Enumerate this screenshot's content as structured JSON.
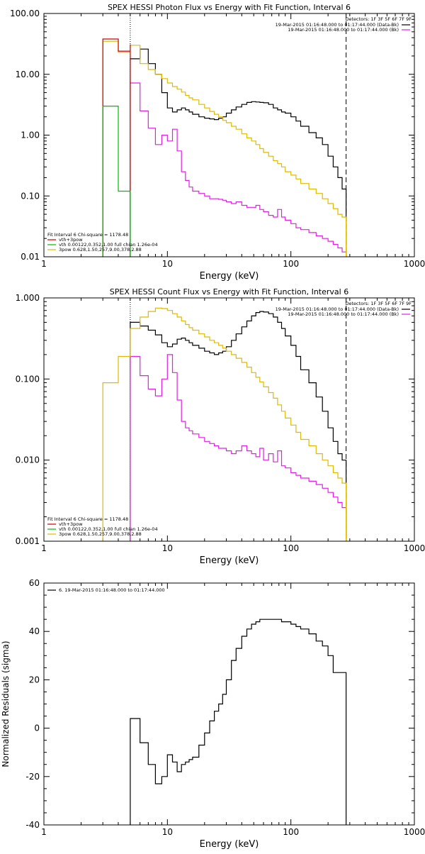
{
  "chart_data": [
    {
      "type": "line",
      "step": true,
      "title": "SPEX HESSI Photon Flux vs Energy with Fit Function, Interval 6",
      "xlabel": "Energy (keV)",
      "ylabel": "",
      "xscale": "log",
      "yscale": "log",
      "xlim": [
        1,
        1000
      ],
      "ylim": [
        0.01,
        100
      ],
      "xtick_labels": [
        "1",
        "10",
        "100",
        "1000"
      ],
      "ytick_labels": [
        "0.01",
        "0.10",
        "1.00",
        "10.00",
        "100.00"
      ],
      "detectors": "Detectors: 1F 3F 5F 6F 7F 9F",
      "legend_right": [
        {
          "label": "19-Mar-2015 01:16:48.000 to 01:17:44.000 (Data-Bk)",
          "color": "#000000"
        },
        {
          "label": "19-Mar-2015 01:16:48.000 to 01:17:44.000 (Bk)",
          "color": "#e020e0"
        }
      ],
      "legend_right_location": "top-right",
      "fit_header": "Fit Interval 6   Chi-square = 1178.48",
      "legend_left": [
        {
          "label": "vth+3pow",
          "color": "#cc0000"
        },
        {
          "label": "vth 0.00122,0.352,1.00  full chian 1.26e-04",
          "color": "#00bb00"
        },
        {
          "label": "3pow 0.628,1.50,257,9.00,378,2.88",
          "color": "#ddbb00"
        }
      ],
      "legend_left_location": "bottom-left",
      "vlines": [
        {
          "x": 5,
          "style": "dotted"
        },
        {
          "x": 280,
          "style": "dashed"
        }
      ],
      "series": [
        {
          "color": "#000000",
          "x": [
            5,
            6,
            7,
            8,
            9,
            10,
            11,
            12,
            13,
            14,
            15,
            16,
            18,
            20,
            22,
            24,
            26,
            28,
            30,
            33,
            36,
            40,
            44,
            48,
            52,
            56,
            60,
            66,
            72,
            78,
            84,
            90,
            100,
            110,
            120,
            140,
            160,
            180,
            200,
            220,
            240,
            260,
            280
          ],
          "y": [
            18,
            26,
            15,
            10,
            5,
            2.8,
            2.4,
            2.6,
            2.8,
            2.6,
            2.4,
            2.2,
            2.0,
            1.9,
            1.85,
            1.8,
            1.9,
            2.0,
            2.3,
            2.6,
            2.9,
            3.2,
            3.45,
            3.55,
            3.5,
            3.45,
            3.4,
            3.2,
            2.8,
            2.6,
            2.4,
            2.3,
            2.0,
            1.7,
            1.4,
            1.1,
            0.9,
            0.7,
            0.45,
            0.3,
            0.2,
            0.13,
            0.13
          ]
        },
        {
          "color": "#e020e0",
          "x": [
            5,
            6,
            7,
            8,
            9,
            10,
            11,
            12,
            13,
            14,
            15,
            16,
            18,
            20,
            22,
            24,
            26,
            28,
            30,
            33,
            36,
            40,
            44,
            48,
            52,
            56,
            60,
            66,
            72,
            78,
            84,
            90,
            100,
            110,
            120,
            140,
            160,
            180,
            200,
            220,
            240,
            260,
            280
          ],
          "y": [
            7.2,
            2.5,
            1.3,
            0.7,
            1.0,
            0.8,
            1.25,
            0.55,
            0.25,
            0.18,
            0.14,
            0.12,
            0.11,
            0.1,
            0.09,
            0.09,
            0.088,
            0.085,
            0.08,
            0.075,
            0.08,
            0.07,
            0.065,
            0.065,
            0.07,
            0.06,
            0.055,
            0.048,
            0.045,
            0.06,
            0.045,
            0.04,
            0.035,
            0.03,
            0.028,
            0.025,
            0.022,
            0.02,
            0.018,
            0.016,
            0.014,
            0.012,
            0.012
          ]
        },
        {
          "color": "#ddbb00",
          "x": [
            3,
            4,
            5,
            6,
            7,
            8,
            9,
            10,
            11,
            12,
            13,
            14,
            15,
            16,
            18,
            20,
            22,
            24,
            26,
            28,
            30,
            33,
            36,
            40,
            44,
            48,
            52,
            56,
            60,
            66,
            72,
            78,
            84,
            90,
            100,
            110,
            120,
            140,
            160,
            180,
            200,
            220,
            240,
            260,
            280
          ],
          "y": [
            35,
            23,
            30,
            15,
            12,
            10,
            8.5,
            7.2,
            6.3,
            5.7,
            5.1,
            4.5,
            4.1,
            3.8,
            3.2,
            2.8,
            2.45,
            2.2,
            2.0,
            1.75,
            1.6,
            1.4,
            1.25,
            1.05,
            0.9,
            0.8,
            0.7,
            0.6,
            0.52,
            0.45,
            0.38,
            0.34,
            0.3,
            0.25,
            0.22,
            0.19,
            0.16,
            0.13,
            0.11,
            0.09,
            0.075,
            0.062,
            0.05,
            0.045,
            0.01
          ]
        },
        {
          "color": "#cc0000",
          "x": [
            3,
            4,
            5
          ],
          "y": [
            38,
            24,
            31
          ]
        },
        {
          "color": "#00bb00",
          "x": [
            3,
            4,
            5
          ],
          "y": [
            3.0,
            0.12,
            0.01
          ]
        }
      ]
    },
    {
      "type": "line",
      "step": true,
      "title": "SPEX HESSI Count Flux vs Energy with Fit Function, Interval 6",
      "xlabel": "Energy (keV)",
      "ylabel": "",
      "xscale": "log",
      "yscale": "log",
      "xlim": [
        1,
        1000
      ],
      "ylim": [
        0.001,
        1
      ],
      "xtick_labels": [
        "1",
        "10",
        "100",
        "1000"
      ],
      "ytick_labels": [
        "0.001",
        "0.010",
        "0.100",
        "1.000"
      ],
      "detectors": "Detectors: 1F 3F 5F 6F 7F 9F",
      "legend_right": [
        {
          "label": "19-Mar-2015 01:16:48.000 to 01:17:44.000 (Data-Bk)",
          "color": "#000000"
        },
        {
          "label": "19-Mar-2015 01:16:48.000 to 01:17:44.000 (Bk)",
          "color": "#e020e0"
        }
      ],
      "legend_right_location": "top-right",
      "fit_header": "Fit Interval 6   Chi-square = 1178.48",
      "legend_left": [
        {
          "label": "vth+3pow",
          "color": "#cc0000"
        },
        {
          "label": "vth 0.00122,0.352,1.00  full chian 1.26e-04",
          "color": "#00bb00"
        },
        {
          "label": "3pow 0.628,1.50,257,9.00,378,2.88",
          "color": "#ddbb00"
        }
      ],
      "legend_left_location": "bottom-left",
      "vlines": [
        {
          "x": 5,
          "style": "dotted"
        },
        {
          "x": 280,
          "style": "dashed"
        }
      ],
      "series": [
        {
          "color": "#000000",
          "x": [
            5,
            6,
            7,
            8,
            9,
            10,
            11,
            12,
            13,
            14,
            15,
            16,
            18,
            20,
            22,
            24,
            26,
            28,
            30,
            33,
            36,
            40,
            44,
            48,
            52,
            56,
            60,
            66,
            72,
            78,
            84,
            90,
            100,
            110,
            120,
            140,
            160,
            180,
            200,
            220,
            240,
            260,
            280
          ],
          "y": [
            0.5,
            0.45,
            0.4,
            0.35,
            0.28,
            0.25,
            0.27,
            0.31,
            0.32,
            0.3,
            0.28,
            0.26,
            0.24,
            0.22,
            0.21,
            0.2,
            0.21,
            0.22,
            0.25,
            0.3,
            0.36,
            0.44,
            0.52,
            0.6,
            0.66,
            0.68,
            0.67,
            0.64,
            0.58,
            0.5,
            0.42,
            0.34,
            0.26,
            0.19,
            0.13,
            0.09,
            0.06,
            0.04,
            0.025,
            0.017,
            0.012,
            0.01,
            0.01
          ]
        },
        {
          "color": "#e020e0",
          "x": [
            5,
            6,
            7,
            8,
            9,
            10,
            11,
            12,
            13,
            14,
            15,
            16,
            18,
            20,
            22,
            24,
            26,
            28,
            30,
            33,
            36,
            40,
            44,
            48,
            52,
            56,
            60,
            66,
            72,
            78,
            84,
            90,
            100,
            110,
            120,
            140,
            160,
            180,
            200,
            220,
            240,
            260,
            280
          ],
          "y": [
            0.19,
            0.11,
            0.075,
            0.062,
            0.1,
            0.2,
            0.12,
            0.055,
            0.03,
            0.025,
            0.023,
            0.021,
            0.019,
            0.017,
            0.016,
            0.015,
            0.014,
            0.014,
            0.013,
            0.012,
            0.013,
            0.015,
            0.013,
            0.012,
            0.011,
            0.014,
            0.01,
            0.012,
            0.0095,
            0.013,
            0.0085,
            0.008,
            0.007,
            0.0065,
            0.006,
            0.0055,
            0.005,
            0.0045,
            0.004,
            0.0035,
            0.003,
            0.0026,
            0.0026
          ]
        },
        {
          "color": "#ddbb00",
          "x": [
            3,
            4,
            5,
            6,
            7,
            8,
            9,
            10,
            11,
            12,
            13,
            14,
            15,
            16,
            18,
            20,
            22,
            24,
            26,
            28,
            30,
            33,
            36,
            40,
            44,
            48,
            52,
            56,
            60,
            66,
            72,
            78,
            84,
            90,
            100,
            110,
            120,
            140,
            160,
            180,
            200,
            220,
            240,
            260,
            280
          ],
          "y": [
            0.09,
            0.19,
            0.42,
            0.58,
            0.68,
            0.75,
            0.74,
            0.7,
            0.64,
            0.58,
            0.52,
            0.47,
            0.43,
            0.4,
            0.36,
            0.33,
            0.3,
            0.28,
            0.26,
            0.24,
            0.22,
            0.2,
            0.18,
            0.16,
            0.14,
            0.12,
            0.105,
            0.092,
            0.08,
            0.068,
            0.058,
            0.048,
            0.04,
            0.033,
            0.027,
            0.022,
            0.018,
            0.015,
            0.012,
            0.01,
            0.0085,
            0.007,
            0.006,
            0.0052,
            0.001
          ]
        }
      ]
    },
    {
      "type": "line",
      "step": true,
      "title": "",
      "xlabel": "Energy (keV)",
      "ylabel": "Normalized Residuals (sigma)",
      "xscale": "log",
      "yscale": "linear",
      "xlim": [
        1,
        1000
      ],
      "ylim": [
        -40,
        60
      ],
      "xtick_labels": [
        "1",
        "10",
        "100",
        "1000"
      ],
      "ytick_labels": [
        "-40",
        "-20",
        "0",
        "20",
        "40",
        "60"
      ],
      "yticks": [
        -40,
        -20,
        0,
        20,
        40,
        60
      ],
      "legend_left": [
        {
          "label": "6. 19-Mar-2015 01:16:48.000 to 01:17:44.000",
          "color": "#000000"
        }
      ],
      "legend_left_location": "top-left",
      "series": [
        {
          "color": "#000000",
          "x": [
            5,
            6,
            7,
            8,
            9,
            10,
            11,
            12,
            13,
            14,
            15,
            16,
            18,
            20,
            22,
            24,
            26,
            28,
            30,
            33,
            36,
            40,
            44,
            48,
            52,
            56,
            60,
            66,
            72,
            78,
            84,
            90,
            100,
            110,
            120,
            140,
            160,
            180,
            200,
            220,
            240,
            260,
            280
          ],
          "y": [
            4,
            -6,
            -15,
            -23,
            -20,
            -11,
            -14,
            -18,
            -15,
            -14,
            -13,
            -12,
            -7,
            -2,
            3,
            7,
            10,
            14,
            20,
            28,
            33,
            38,
            41,
            43,
            44,
            45,
            45,
            45,
            45,
            45,
            44,
            44,
            43,
            42,
            41,
            39,
            36,
            34,
            30,
            23,
            23,
            23,
            23
          ]
        }
      ]
    }
  ]
}
